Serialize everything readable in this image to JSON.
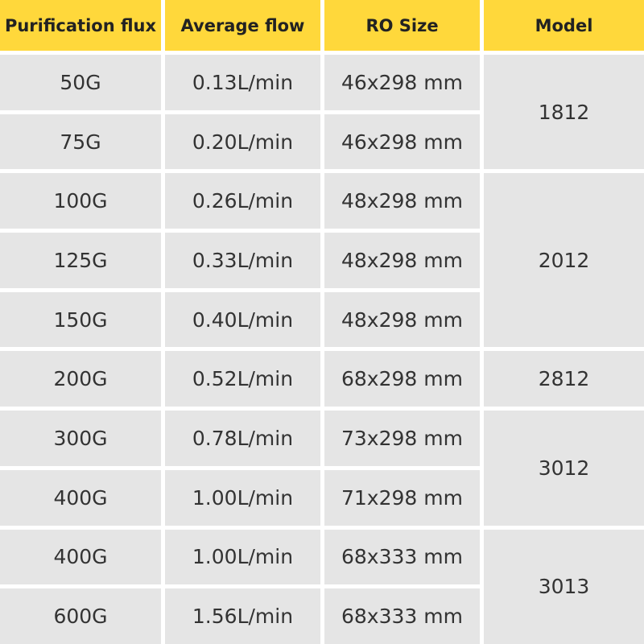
{
  "table": {
    "header": [
      "Purification flux",
      "Average flow",
      "RO Size",
      "Model"
    ],
    "rows": [
      [
        "50G",
        "0.13L/min",
        "46x298 mm",
        "1812"
      ],
      [
        "75G",
        "0.20L/min",
        "46x298 mm",
        null
      ],
      [
        "100G",
        "0.26L/min",
        "48x298 mm",
        "2012"
      ],
      [
        "125G",
        "0.33L/min",
        "48x298 mm",
        null
      ],
      [
        "150G",
        "0.40L/min",
        "48x298 mm",
        null
      ],
      [
        "200G",
        "0.52L/min",
        "68x298 mm",
        "2812"
      ],
      [
        "300G",
        "0.78L/min",
        "73x298 mm",
        "3012"
      ],
      [
        "400G",
        "1.00L/min",
        "71x298 mm",
        null
      ],
      [
        "400G",
        "1.00L/min",
        "68x333 mm",
        "3013"
      ],
      [
        "600G",
        "1.56L/min",
        "68x333 mm",
        null
      ]
    ]
  }
}
